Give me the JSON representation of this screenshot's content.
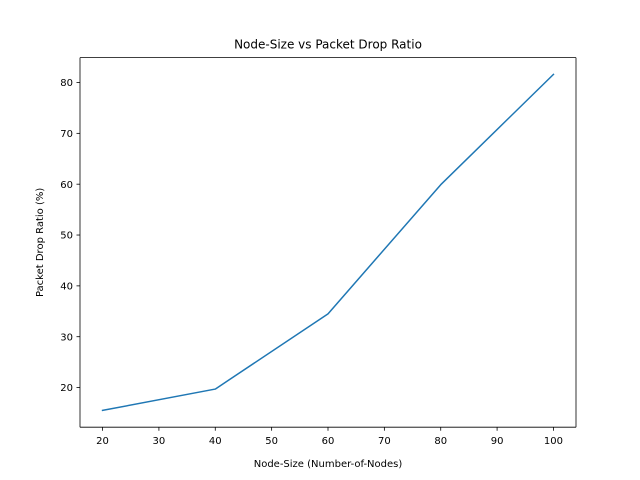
{
  "chart_data": {
    "type": "line",
    "title": "Node-Size vs Packet Drop Ratio",
    "xlabel": "Node-Size (Number-of-Nodes)",
    "ylabel": "Packet Drop Ratio (%)",
    "xlim": [
      16,
      104
    ],
    "ylim": [
      12.2,
      84.9
    ],
    "xticks": [
      20,
      30,
      40,
      50,
      60,
      70,
      80,
      90,
      100
    ],
    "yticks": [
      20,
      30,
      40,
      50,
      60,
      70,
      80
    ],
    "grid": false,
    "series": [
      {
        "x": [
          20,
          40,
          60,
          80,
          100
        ],
        "values": [
          15.5,
          19.7,
          34.5,
          59.9,
          81.6
        ],
        "color": "#1f77b4"
      }
    ]
  }
}
